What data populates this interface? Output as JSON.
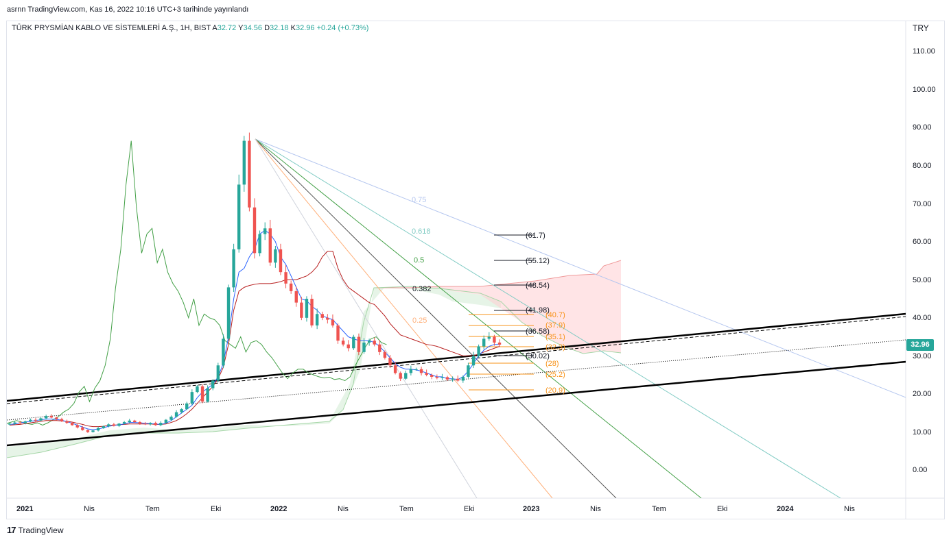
{
  "header": {
    "published": "asrnn TradingView.com, Kas 16, 2022 10:16 UTC+3 tarihinde yayınlandı"
  },
  "legend": {
    "symbol": "TÜRK PRYSMİAN KABLO VE SİSTEMLERİ A.Ş., 1H, BIST",
    "open_label": "A",
    "open": "32.72",
    "high_label": "Y",
    "high": "34.56",
    "low_label": "D",
    "low": "32.18",
    "close_label": "K",
    "close": "32.96",
    "change": "+0.24 (+0.73%)"
  },
  "currency": "TRY",
  "last_price": "32.96",
  "footer": {
    "brand": "TradingView",
    "logo": "tradingview-logo-icon"
  },
  "colors": {
    "up": "#26a69a",
    "down": "#ef5350",
    "kijun": "#b71c1c",
    "tenkan": "#2962ff",
    "chikou": "#43a047",
    "fib_text": "#f7931a"
  },
  "chart_data": {
    "type": "candlestick",
    "y_axis": {
      "ticks": [
        "110.00",
        "100.00",
        "90.00",
        "80.00",
        "70.00",
        "60.00",
        "50.00",
        "40.00",
        "30.00",
        "20.00",
        "10.00",
        "0.00"
      ],
      "range": [
        -7,
        117
      ]
    },
    "x_axis": {
      "ticks": [
        "2021",
        "Nis",
        "Tem",
        "Eki",
        "2022",
        "Nis",
        "Tem",
        "Eki",
        "2023",
        "Nis",
        "Tem",
        "Eki",
        "2024",
        "Nis"
      ],
      "bold": [
        "2021",
        "2022",
        "2023",
        "2024"
      ]
    },
    "fib_fan_levels": [
      "0.75",
      "0.618",
      "0.5",
      "0.382",
      "0.25"
    ],
    "price_levels_black": [
      "(61.7)",
      "(55.12)",
      "(48.54)",
      "(41.98)",
      "(36.58)",
      "(30.02)"
    ],
    "price_levels_orange": [
      "(40.7)",
      "(37.9)",
      "(35.1)",
      "(32.3)",
      "(28)",
      "(25.2)",
      "(20.9)"
    ],
    "close_series": [
      12.2,
      12.5,
      12.3,
      12.8,
      13.2,
      13.0,
      13.6,
      14.2,
      13.8,
      13.4,
      12.8,
      12.4,
      11.8,
      11.2,
      10.5,
      10.0,
      10.4,
      11.0,
      11.5,
      12.0,
      11.6,
      12.2,
      12.6,
      13.0,
      12.6,
      12.2,
      12.0,
      12.4,
      11.8,
      12.4,
      13.2,
      14.0,
      15.2,
      16.0,
      17.5,
      20.5,
      22.0,
      18.0,
      21.5,
      23.5,
      27.5,
      34.5,
      48.0,
      58.0,
      75.0,
      86.5,
      69.0,
      57.0,
      62.0,
      63.5,
      54.5,
      58.0,
      52.0,
      49.0,
      47.0,
      44.0,
      40.0,
      45.0,
      38.0,
      41.0,
      40.0,
      39.5,
      38.0,
      34.0,
      33.0,
      32.0,
      35.0,
      31.0,
      33.5,
      34.0,
      33.0,
      31.0,
      29.5,
      27.5,
      25.5,
      24.0,
      25.5,
      26.5,
      26.5,
      25.5,
      25.0,
      24.5,
      24.2,
      24.4,
      23.8,
      24.0,
      23.5,
      24.5,
      27.5,
      30.0,
      32.5,
      34.5,
      35.0,
      33.5,
      32.96
    ],
    "tenkan_series": [
      12.0,
      12.1,
      12.4,
      12.6,
      12.8,
      13.0,
      13.2,
      13.4,
      13.4,
      13.3,
      13.1,
      12.7,
      12.3,
      11.8,
      11.3,
      10.8,
      10.6,
      10.8,
      11.1,
      11.5,
      11.7,
      11.9,
      12.1,
      12.5,
      12.5,
      12.4,
      12.3,
      12.2,
      12.1,
      12.0,
      12.3,
      13.0,
      14.0,
      15.0,
      16.0,
      17.0,
      19.0,
      20.5,
      21.5,
      22.5,
      24.5,
      28.0,
      35.0,
      45.0,
      52.0,
      53.0,
      56.0,
      58.0,
      62.0,
      63.0,
      62.0,
      60.0,
      56.0,
      54.0,
      51.0,
      48.0,
      45.0,
      44.5,
      43.0,
      42.0,
      40.5,
      40.0,
      39.5,
      38.0,
      36.5,
      35.0,
      34.5,
      34.0,
      34.0,
      34.0,
      33.5,
      32.5,
      31.0,
      29.5,
      28.0,
      27.0,
      26.5,
      26.5,
      26.3,
      26.0,
      25.5,
      25.0,
      24.5,
      24.5,
      24.0,
      24.0,
      23.8,
      24.5,
      26.0,
      28.0,
      30.0,
      31.5,
      32.5,
      33.0,
      33.0
    ],
    "kijun_series": [
      11.8,
      11.9,
      12.0,
      12.2,
      12.4,
      12.6,
      12.8,
      13.0,
      13.0,
      13.0,
      12.9,
      12.8,
      12.6,
      12.3,
      12.0,
      11.6,
      11.4,
      11.4,
      11.5,
      11.7,
      11.8,
      11.9,
      12.0,
      12.1,
      12.1,
      12.1,
      12.1,
      12.1,
      12.0,
      12.0,
      12.1,
      12.5,
      13.0,
      13.8,
      14.8,
      16.0,
      17.5,
      19.0,
      20.5,
      22.0,
      24.0,
      27.0,
      33.0,
      42.0,
      47.0,
      48.0,
      48.5,
      48.8,
      49.0,
      49.0,
      49.0,
      49.2,
      49.5,
      50.0,
      50.0,
      50.0,
      50.5,
      51.0,
      52.0,
      53.5,
      56.0,
      57.5,
      57.5,
      53.0,
      50.0,
      48.0,
      47.0,
      46.0,
      45.0,
      44.0,
      43.5,
      42.0,
      40.5,
      38.5,
      37.0,
      35.5,
      35.0,
      34.5,
      34.0,
      33.5,
      33.0,
      32.8,
      32.5,
      32.0,
      31.5,
      31.0,
      30.5,
      30.0,
      30.0,
      30.0,
      30.5,
      31.0,
      31.5,
      32.0,
      32.5
    ]
  }
}
